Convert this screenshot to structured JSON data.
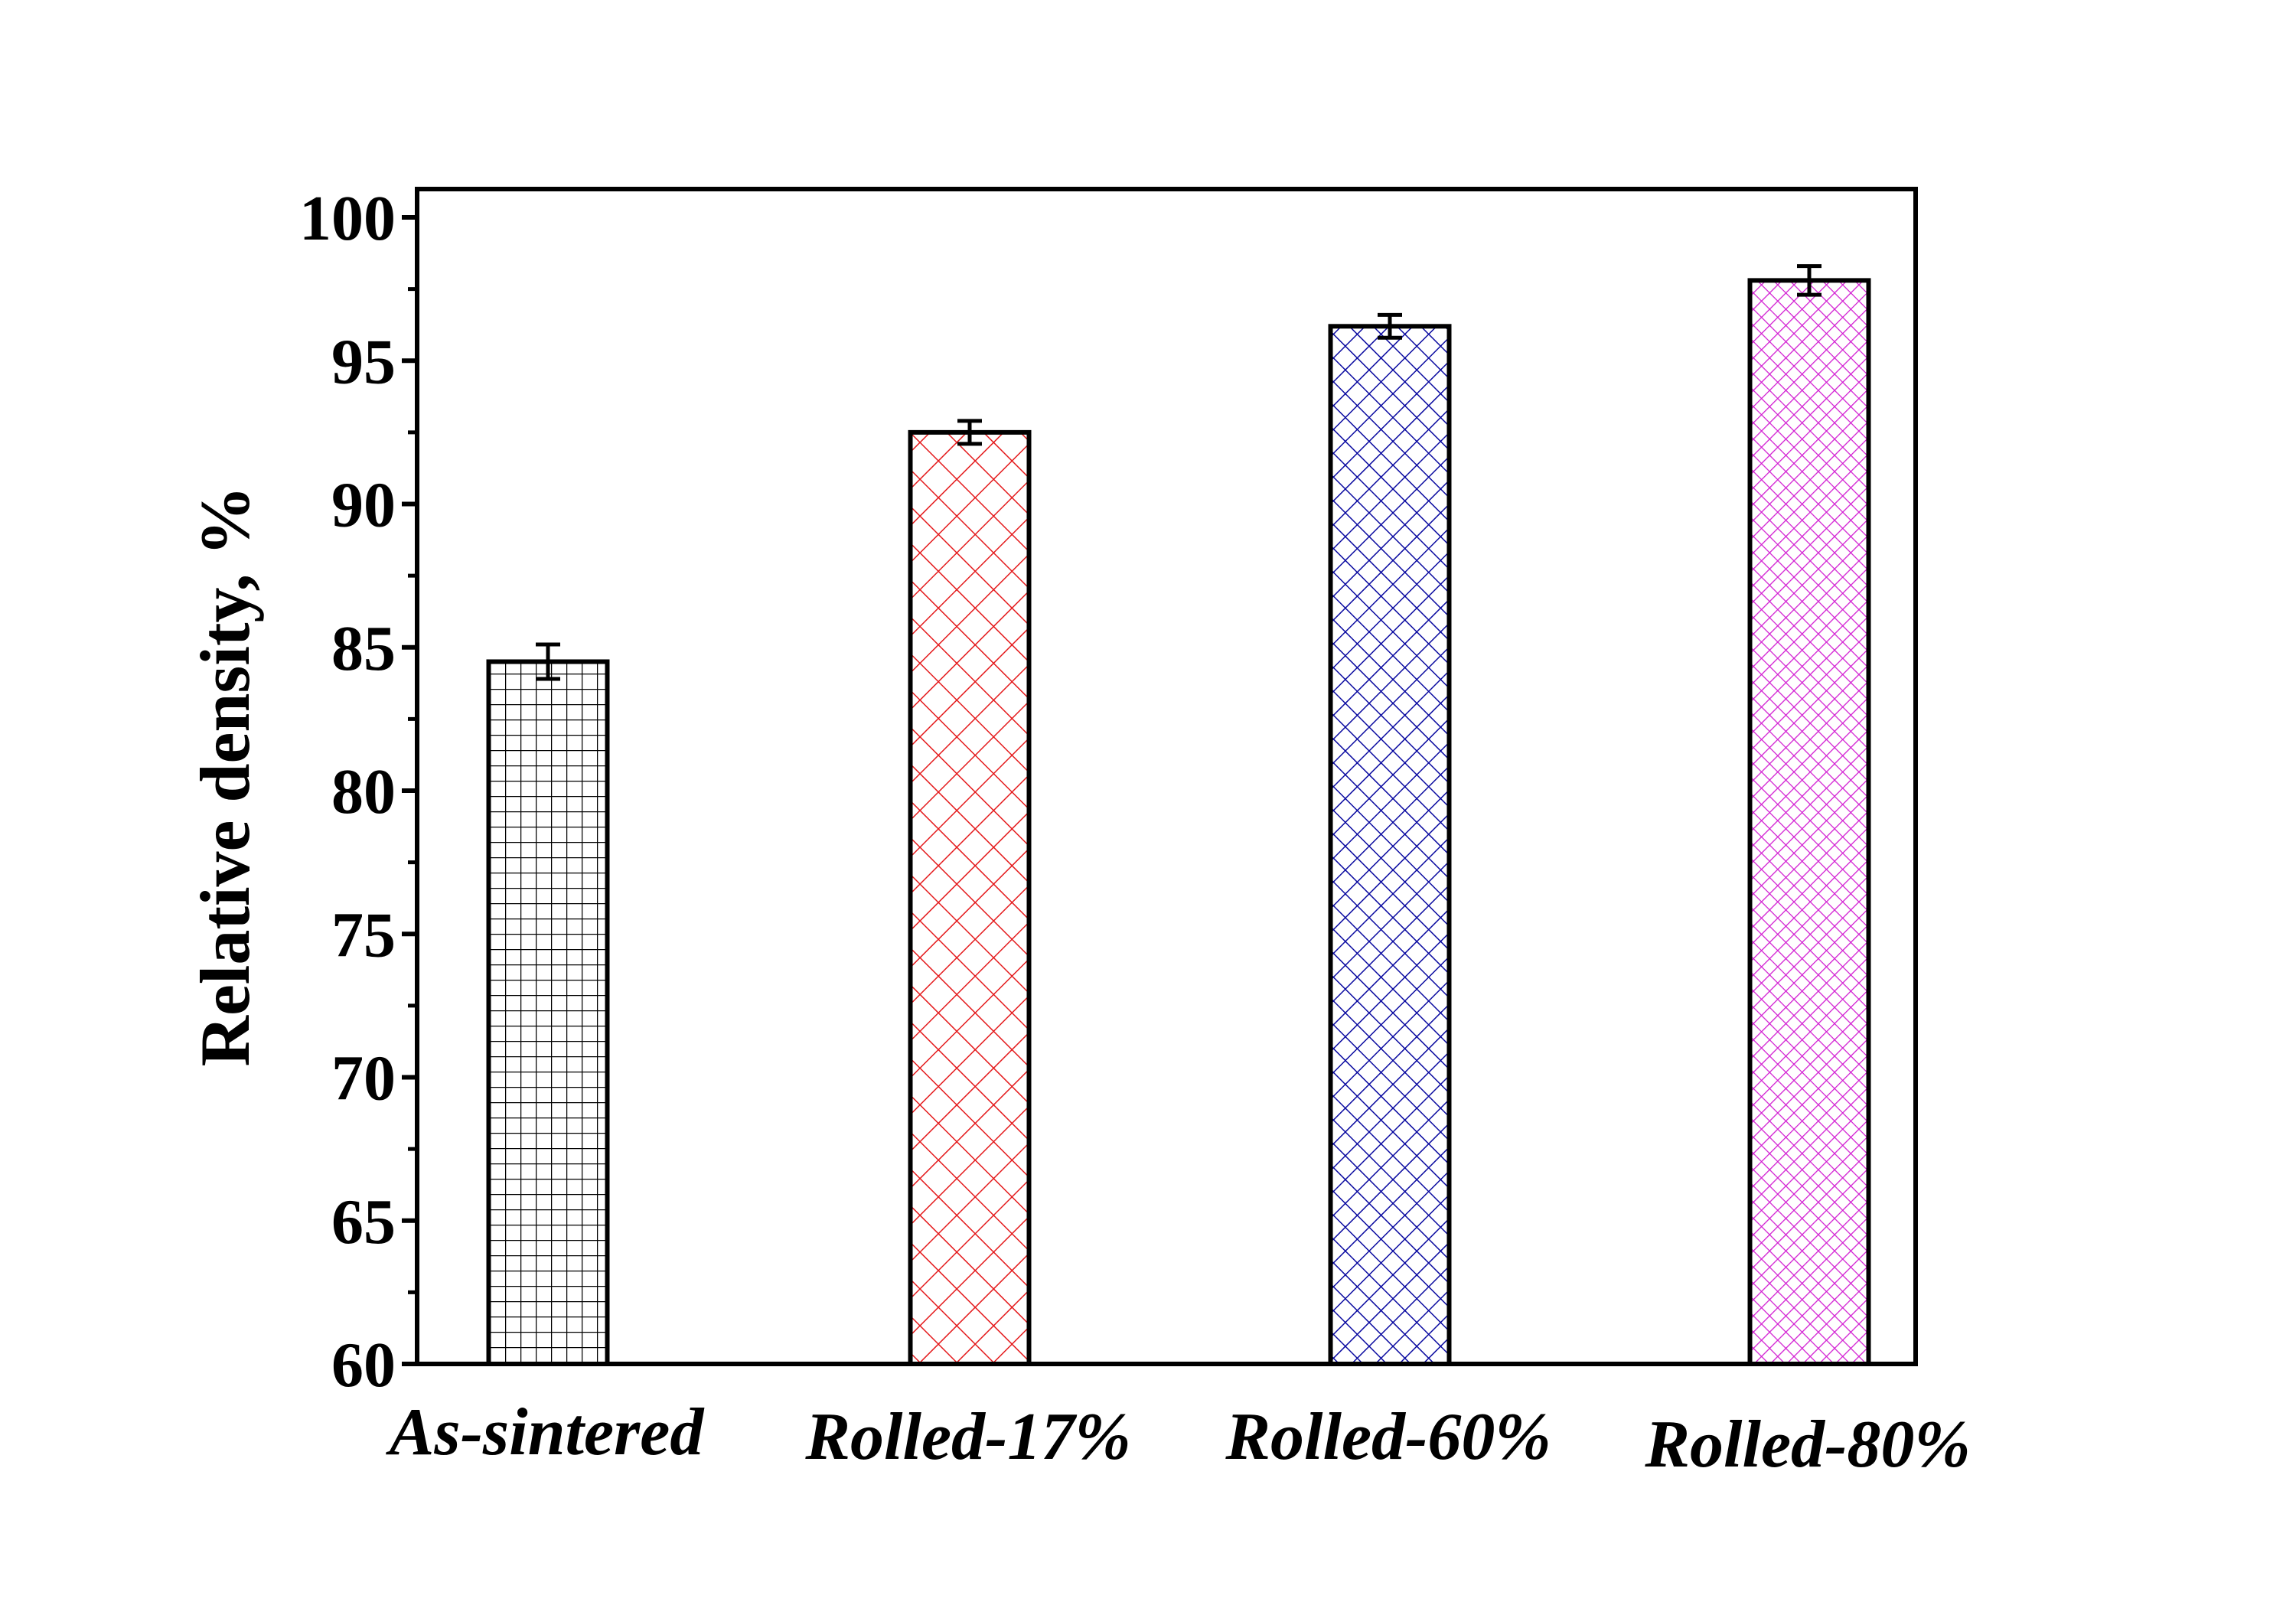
{
  "chart_data": {
    "type": "bar",
    "title": "",
    "xlabel": "",
    "ylabel": "Relative density, %",
    "ylim": [
      60,
      100
    ],
    "yticks": [
      "60",
      "65",
      "70",
      "75",
      "80",
      "85",
      "90",
      "95",
      "100"
    ],
    "grid": false,
    "categories": [
      "As-sintered",
      "Rolled-17%",
      "Rolled-60%",
      "Rolled-80%"
    ],
    "values": [
      84.5,
      92.5,
      96.2,
      97.8
    ],
    "errors": [
      0.6,
      0.4,
      0.4,
      0.5
    ],
    "colors": [
      "#000000",
      "#e41a1c",
      "#0a0aa0",
      "#d21ed2"
    ],
    "patterns": [
      "grid",
      "crosshatch",
      "crosshatch-fine",
      "crosshatch-finest"
    ]
  }
}
